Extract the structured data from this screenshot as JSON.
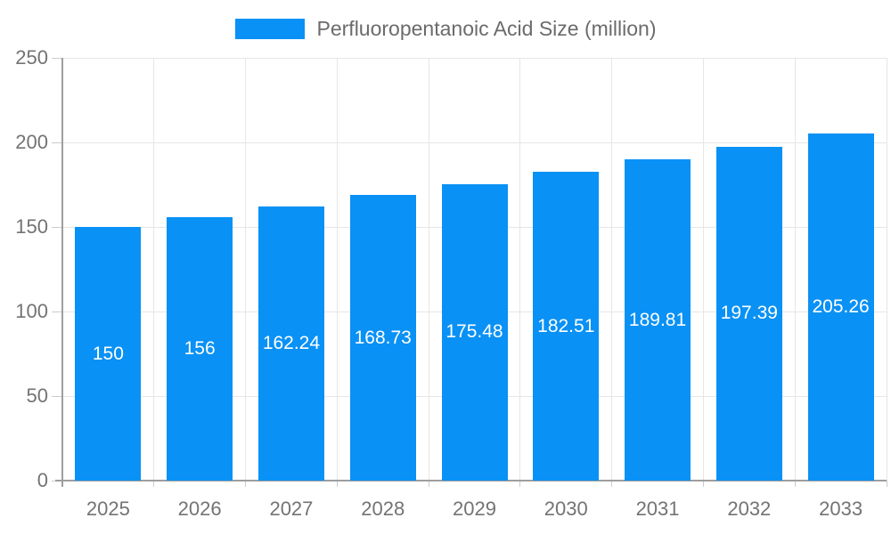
{
  "legend": {
    "label": "Perfluoropentanoic Acid Size (million)"
  },
  "colors": {
    "bar": "#0991f5",
    "grid": "#e6e6e6",
    "axis_line": "#9e9e9e",
    "tick": "#cccccc",
    "axis_label": "#737373",
    "bar_label": "#ffffff",
    "legend_text": "#6b6b6b",
    "background": "#ffffff"
  },
  "chart_data": {
    "type": "bar",
    "title": "Perfluoropentanoic Acid Size (million)",
    "categories": [
      "2025",
      "2026",
      "2027",
      "2028",
      "2029",
      "2030",
      "2031",
      "2032",
      "2033"
    ],
    "values": [
      150,
      156,
      162.24,
      168.73,
      175.48,
      182.51,
      189.81,
      197.39,
      205.26
    ],
    "value_labels": [
      "150",
      "156",
      "162.24",
      "168.73",
      "175.48",
      "182.51",
      "189.81",
      "197.39",
      "205.26"
    ],
    "xlabel": "",
    "ylabel": "",
    "ylim": [
      0,
      250
    ],
    "yticks": [
      0,
      50,
      100,
      150,
      200,
      250
    ],
    "grid": true,
    "legend_position": "top",
    "bar_label_position": "center-inside"
  }
}
